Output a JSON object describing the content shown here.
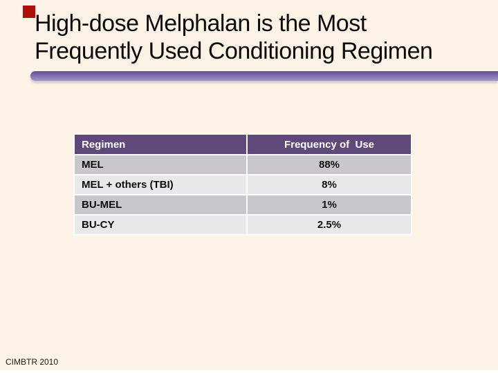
{
  "slide": {
    "title_line1": "High-dose Melphalan is the Most",
    "title_line2": "Frequently Used Conditioning Regimen",
    "footer": "CIMBTR 2010"
  },
  "table": {
    "headers": [
      "Regimen",
      "Frequency of  Use"
    ],
    "rows": [
      {
        "regimen": "MEL",
        "frequency": "88%"
      },
      {
        "regimen": "MEL + others (TBI)",
        "frequency": "8%"
      },
      {
        "regimen": "BU-MEL",
        "frequency": "1%"
      },
      {
        "regimen": "BU-CY",
        "frequency": "2.5%"
      }
    ]
  },
  "chart_data": {
    "type": "table",
    "title": "High-dose Melphalan is the Most Frequently Used Conditioning Regimen",
    "columns": [
      "Regimen",
      "Frequency of Use"
    ],
    "categories": [
      "MEL",
      "MEL + others (TBI)",
      "BU-MEL",
      "BU-CY"
    ],
    "values": [
      88,
      8,
      1,
      2.5
    ],
    "value_unit": "%"
  },
  "colors": {
    "background": "#fdf2e6",
    "accent_bar": "#7e6cae",
    "header_purple": "#5f497a",
    "row_gray": "#c9c7cc",
    "row_light": "#e9e8eb",
    "red_accent": "#b00d0d"
  }
}
